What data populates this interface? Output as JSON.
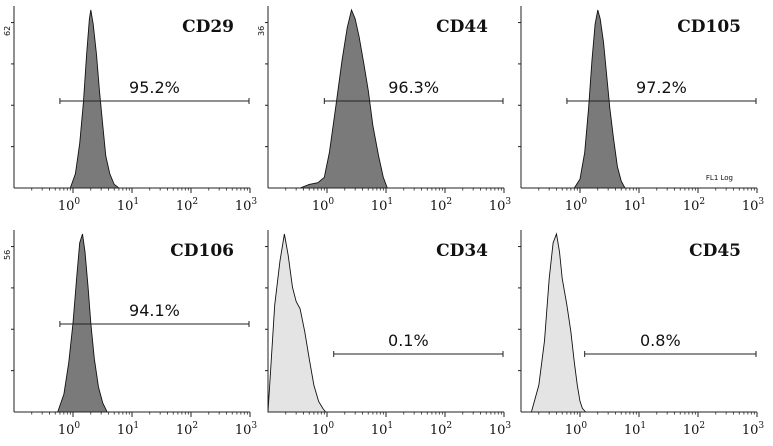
{
  "chart_data": [
    {
      "type": "area",
      "title": "CD29",
      "positive_percent": "95.2%",
      "y_max_label": "62",
      "x_axis": {
        "scale": "log",
        "range": [
          0.1,
          1000
        ],
        "tick_labels": [
          {
            "base": "10",
            "exp": "0"
          },
          {
            "base": "10",
            "exp": "1"
          },
          {
            "base": "10",
            "exp": "2"
          },
          {
            "base": "10",
            "exp": "3"
          }
        ]
      },
      "histogram_fill": "#7a7a7a",
      "gate": [
        0.6,
        1000
      ],
      "series": [
        {
          "x": [
            0.9,
            1.1,
            1.3,
            1.5,
            1.7,
            1.9,
            2.0,
            2.2,
            2.5,
            2.8,
            3.2,
            3.6,
            4.2,
            5.0,
            6.0
          ],
          "y": [
            0,
            8,
            25,
            48,
            75,
            95,
            100,
            92,
            75,
            55,
            35,
            18,
            8,
            2,
            0
          ]
        }
      ]
    },
    {
      "type": "area",
      "title": "CD44",
      "positive_percent": "96.3%",
      "y_max_label": "36",
      "x_axis": {
        "scale": "log",
        "range": [
          0.1,
          1000
        ],
        "tick_labels": [
          {
            "base": "10",
            "exp": "0"
          },
          {
            "base": "10",
            "exp": "1"
          },
          {
            "base": "10",
            "exp": "2"
          },
          {
            "base": "10",
            "exp": "3"
          }
        ]
      },
      "histogram_fill": "#7a7a7a",
      "gate": [
        0.9,
        1000
      ],
      "series": [
        {
          "x": [
            0.35,
            0.5,
            0.7,
            0.9,
            1.1,
            1.4,
            1.8,
            2.2,
            2.6,
            3.0,
            3.5,
            4.2,
            5.0,
            6.0,
            7.5,
            9.0,
            10.5
          ],
          "y": [
            0,
            2,
            3,
            6,
            20,
            45,
            72,
            90,
            100,
            95,
            85,
            70,
            55,
            35,
            18,
            6,
            0
          ]
        }
      ]
    },
    {
      "type": "area",
      "title": "CD105",
      "positive_percent": "97.2%",
      "y_max_label": "",
      "axis_note": "FL1 Log",
      "x_axis": {
        "scale": "log",
        "range": [
          0.1,
          1000
        ],
        "tick_labels": [
          {
            "base": "10",
            "exp": "0"
          },
          {
            "base": "10",
            "exp": "1"
          },
          {
            "base": "10",
            "exp": "2"
          },
          {
            "base": "10",
            "exp": "3"
          }
        ]
      },
      "histogram_fill": "#7a7a7a",
      "gate": [
        0.6,
        1000
      ],
      "series": [
        {
          "x": [
            0.8,
            1.0,
            1.2,
            1.4,
            1.6,
            1.8,
            2.0,
            2.2,
            2.5,
            2.8,
            3.2,
            3.7,
            4.3,
            5.0,
            5.8
          ],
          "y": [
            0,
            5,
            20,
            45,
            72,
            92,
            100,
            95,
            82,
            65,
            45,
            28,
            12,
            4,
            0
          ]
        }
      ]
    },
    {
      "type": "area",
      "title": "CD106",
      "positive_percent": "94.1%",
      "y_max_label": "56",
      "x_axis": {
        "scale": "log",
        "range": [
          0.1,
          1000
        ],
        "tick_labels": [
          {
            "base": "10",
            "exp": "0"
          },
          {
            "base": "10",
            "exp": "1"
          },
          {
            "base": "10",
            "exp": "2"
          },
          {
            "base": "10",
            "exp": "3"
          }
        ]
      },
      "histogram_fill": "#7a7a7a",
      "gate": [
        0.6,
        1000
      ],
      "series": [
        {
          "x": [
            0.55,
            0.7,
            0.85,
            1.0,
            1.15,
            1.3,
            1.45,
            1.6,
            1.8,
            2.0,
            2.3,
            2.7,
            3.2,
            3.8
          ],
          "y": [
            0,
            10,
            28,
            50,
            75,
            95,
            100,
            90,
            70,
            50,
            30,
            14,
            5,
            0
          ]
        }
      ]
    },
    {
      "type": "area",
      "title": "CD34",
      "positive_percent": "0.1%",
      "y_max_label": "",
      "x_axis": {
        "scale": "log",
        "range": [
          0.1,
          1000
        ],
        "tick_labels": [
          {
            "base": "10",
            "exp": "0"
          },
          {
            "base": "10",
            "exp": "1"
          },
          {
            "base": "10",
            "exp": "2"
          },
          {
            "base": "10",
            "exp": "3"
          }
        ]
      },
      "histogram_fill": "#e4e4e4",
      "gate": [
        1.3,
        1000
      ],
      "series": [
        {
          "x": [
            0.1,
            0.13,
            0.16,
            0.19,
            0.22,
            0.26,
            0.3,
            0.35,
            0.42,
            0.5,
            0.6,
            0.72,
            0.85,
            0.95
          ],
          "y": [
            0,
            60,
            85,
            100,
            88,
            70,
            62,
            58,
            45,
            30,
            15,
            6,
            2,
            0
          ]
        }
      ]
    },
    {
      "type": "area",
      "title": "CD45",
      "positive_percent": "0.8%",
      "y_max_label": "",
      "x_axis": {
        "scale": "log",
        "range": [
          0.1,
          1000
        ],
        "tick_labels": [
          {
            "base": "10",
            "exp": "0"
          },
          {
            "base": "10",
            "exp": "1"
          },
          {
            "base": "10",
            "exp": "2"
          },
          {
            "base": "10",
            "exp": "3"
          }
        ]
      },
      "histogram_fill": "#e4e4e4",
      "gate": [
        1.2,
        1000
      ],
      "series": [
        {
          "x": [
            0.15,
            0.2,
            0.25,
            0.3,
            0.35,
            0.4,
            0.45,
            0.5,
            0.6,
            0.7,
            0.8,
            0.9,
            1.0,
            1.1,
            1.25
          ],
          "y": [
            0,
            15,
            40,
            75,
            95,
            100,
            90,
            75,
            60,
            45,
            28,
            15,
            6,
            2,
            0
          ]
        }
      ]
    }
  ]
}
